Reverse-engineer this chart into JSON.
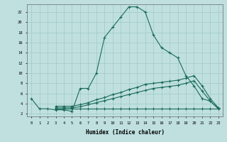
{
  "xlabel": "Humidex (Indice chaleur)",
  "ylabel": "",
  "bg_color": "#c0e0e0",
  "grid_color": "#a0c8c8",
  "line_color": "#1a6b5a",
  "xlim": [
    -0.5,
    23.5
  ],
  "ylim": [
    1.5,
    23.5
  ],
  "xticks": [
    0,
    1,
    2,
    3,
    4,
    5,
    6,
    7,
    8,
    9,
    10,
    11,
    12,
    13,
    14,
    15,
    16,
    17,
    18,
    19,
    20,
    21,
    22,
    23
  ],
  "yticks": [
    2,
    4,
    6,
    8,
    10,
    12,
    14,
    16,
    18,
    20,
    22
  ],
  "curve_main": {
    "x": [
      0,
      1,
      2,
      3,
      4,
      5,
      6,
      7,
      8,
      9,
      10,
      11,
      12,
      13,
      14,
      15,
      16,
      17,
      18,
      19,
      20,
      21,
      22,
      23
    ],
    "y": [
      5,
      3,
      3,
      2.8,
      2.8,
      2.5,
      7,
      7,
      10,
      17,
      19,
      21,
      23,
      23,
      22,
      17.5,
      15,
      14,
      13,
      9.5,
      7.5,
      5,
      4.5,
      3
    ]
  },
  "curve_upper": {
    "x": [
      3,
      4,
      5,
      6,
      7,
      8,
      9,
      10,
      11,
      12,
      13,
      14,
      15,
      16,
      17,
      18,
      19,
      20,
      21,
      22,
      23
    ],
    "y": [
      3.5,
      3.5,
      3.5,
      3.8,
      4.2,
      4.8,
      5.2,
      5.8,
      6.2,
      6.8,
      7.2,
      7.8,
      8.0,
      8.2,
      8.4,
      8.6,
      9.0,
      9.5,
      7.5,
      5,
      3.2
    ]
  },
  "curve_mid": {
    "x": [
      3,
      4,
      5,
      6,
      7,
      8,
      9,
      10,
      11,
      12,
      13,
      14,
      15,
      16,
      17,
      18,
      19,
      20,
      21,
      22,
      23
    ],
    "y": [
      3.2,
      3.2,
      3.2,
      3.4,
      3.8,
      4.2,
      4.6,
      5.0,
      5.4,
      5.8,
      6.2,
      6.6,
      7.0,
      7.2,
      7.4,
      7.6,
      8.0,
      8.5,
      6.5,
      4.5,
      3.0
    ]
  },
  "curve_lower": {
    "x": [
      3,
      4,
      5,
      6,
      7,
      8,
      9,
      10,
      11,
      12,
      13,
      14,
      15,
      16,
      17,
      18,
      19,
      20,
      21,
      22,
      23
    ],
    "y": [
      3,
      3,
      3,
      3,
      3,
      3,
      3,
      3,
      3,
      3,
      3,
      3,
      3,
      3,
      3,
      3,
      3,
      3,
      3,
      3,
      3
    ]
  }
}
